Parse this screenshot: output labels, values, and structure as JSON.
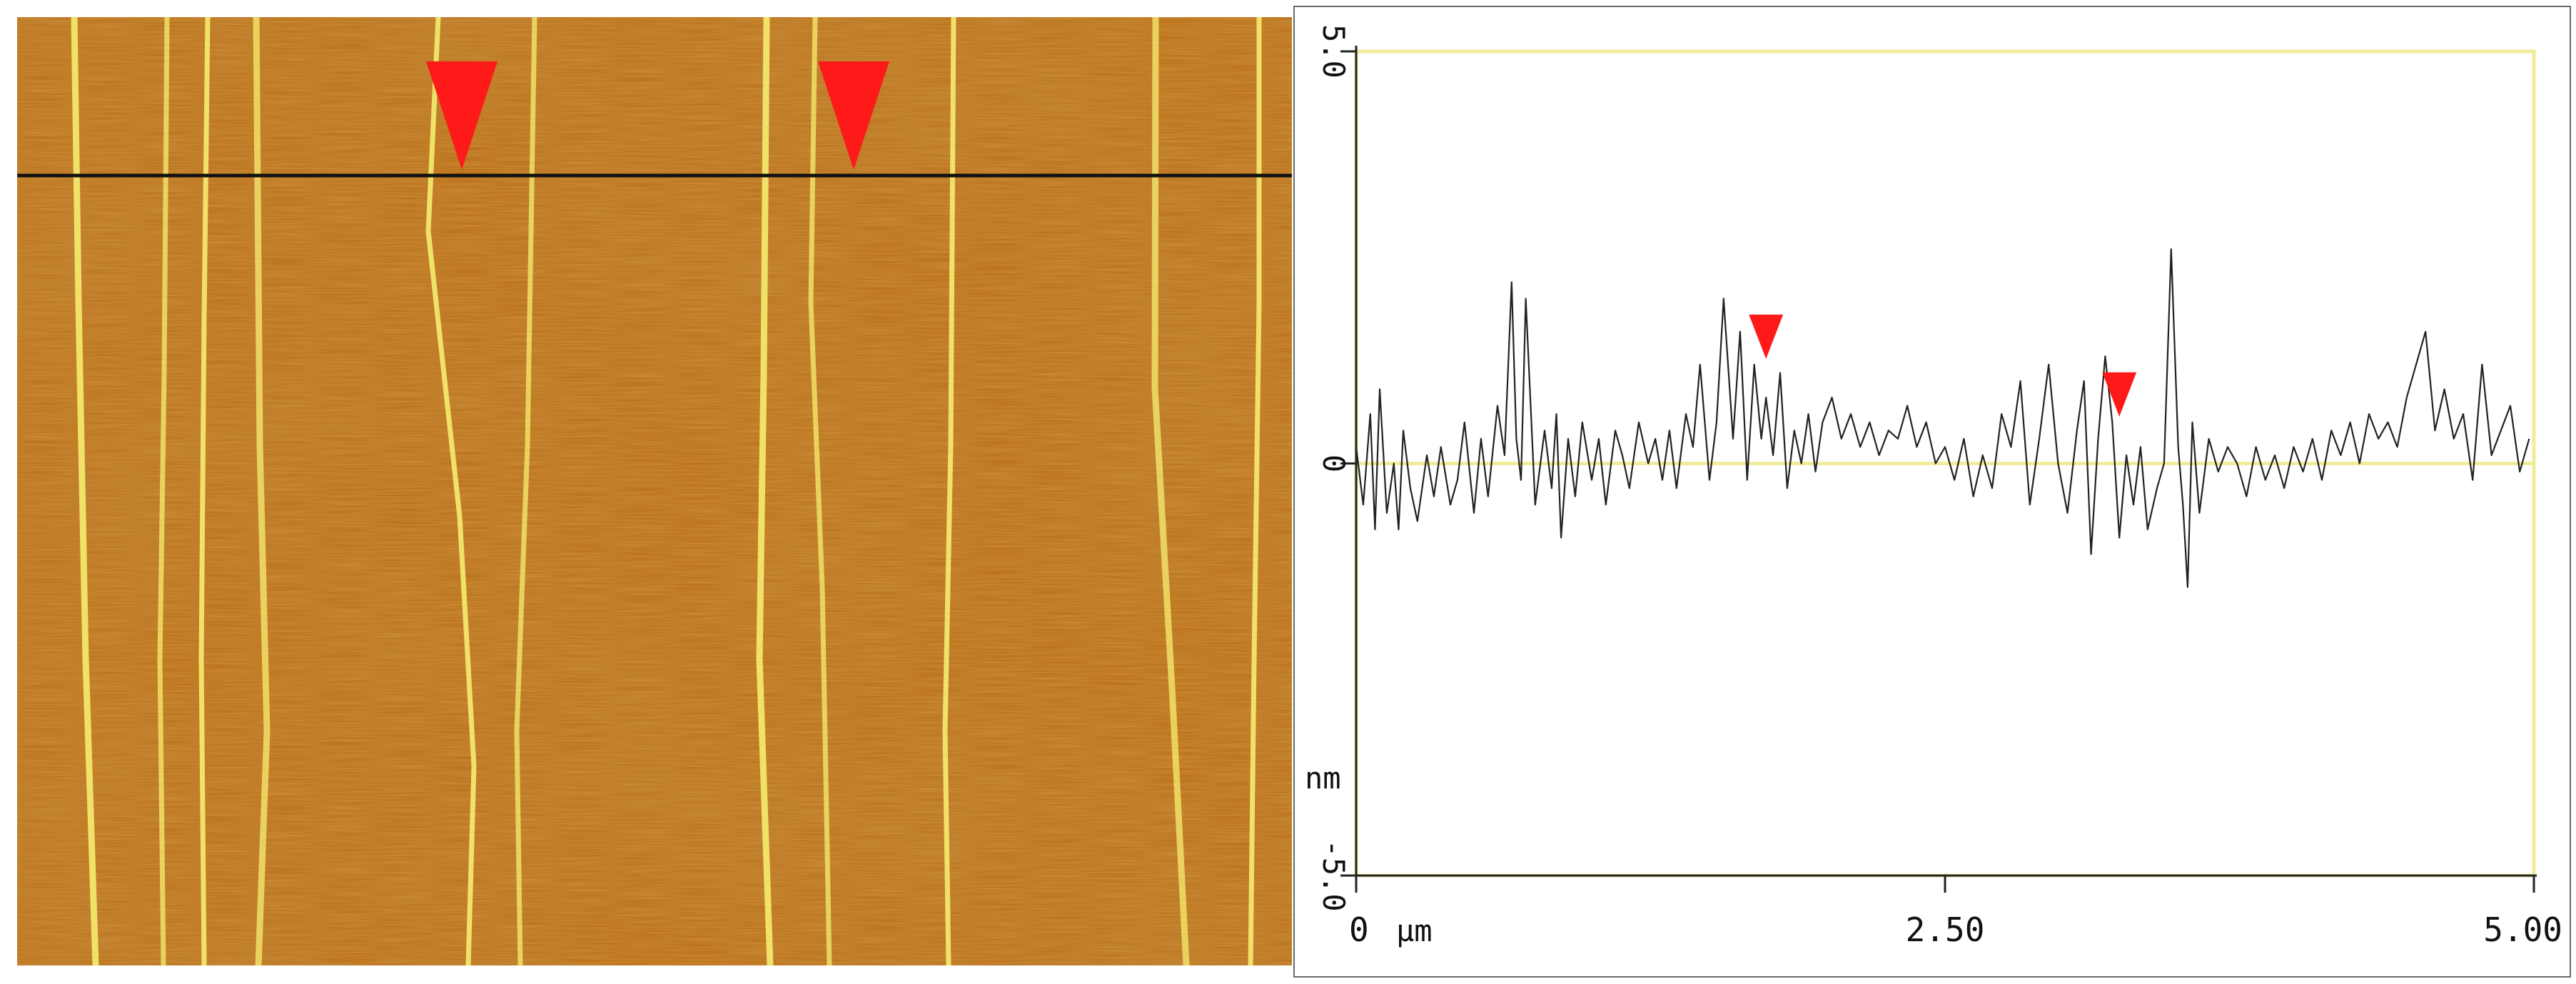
{
  "afm_image": {
    "background_color": "#b4640f",
    "fiber_color": "#f2e76c",
    "scan_line_color": "#111111",
    "marker_color": "#ff1a1a"
  },
  "chart_data": {
    "type": "line",
    "title": "",
    "xlabel": "µm",
    "ylabel": "nm",
    "xlim": [
      0,
      5.0
    ],
    "ylim": [
      -5.0,
      5.0
    ],
    "x_ticks": [
      "0",
      "2.50",
      "5.00"
    ],
    "y_ticks": [
      "5.0",
      "0",
      "-5.0"
    ],
    "grid": false,
    "frame_color": "#f0ec9a",
    "zero_line_color": "#f0ec9a",
    "line_color": "#222222",
    "markers": [
      {
        "x": 1.74,
        "y": 1.2
      },
      {
        "x": 3.24,
        "y": 0.5
      }
    ],
    "series": [
      {
        "x": [
          0.0,
          0.03,
          0.06,
          0.08,
          0.1,
          0.13,
          0.16,
          0.18,
          0.2,
          0.23,
          0.26,
          0.3,
          0.33,
          0.36,
          0.4,
          0.43,
          0.46,
          0.5,
          0.53,
          0.56,
          0.6,
          0.63,
          0.66,
          0.68,
          0.7,
          0.72,
          0.76,
          0.8,
          0.83,
          0.85,
          0.87,
          0.9,
          0.93,
          0.96,
          1.0,
          1.03,
          1.06,
          1.1,
          1.13,
          1.16,
          1.2,
          1.24,
          1.27,
          1.3,
          1.33,
          1.36,
          1.4,
          1.43,
          1.46,
          1.5,
          1.53,
          1.56,
          1.6,
          1.63,
          1.66,
          1.69,
          1.72,
          1.74,
          1.77,
          1.8,
          1.83,
          1.86,
          1.89,
          1.92,
          1.95,
          1.98,
          2.02,
          2.06,
          2.1,
          2.14,
          2.18,
          2.22,
          2.26,
          2.3,
          2.34,
          2.38,
          2.42,
          2.46,
          2.5,
          2.54,
          2.58,
          2.62,
          2.66,
          2.7,
          2.74,
          2.78,
          2.82,
          2.86,
          2.9,
          2.94,
          2.98,
          3.02,
          3.06,
          3.09,
          3.12,
          3.15,
          3.18,
          3.21,
          3.24,
          3.27,
          3.3,
          3.33,
          3.36,
          3.4,
          3.43,
          3.46,
          3.49,
          3.51,
          3.53,
          3.55,
          3.58,
          3.62,
          3.66,
          3.7,
          3.74,
          3.78,
          3.82,
          3.86,
          3.9,
          3.94,
          3.98,
          4.02,
          4.06,
          4.1,
          4.14,
          4.18,
          4.22,
          4.26,
          4.3,
          4.34,
          4.38,
          4.42,
          4.46,
          4.5,
          4.54,
          4.58,
          4.62,
          4.66,
          4.7,
          4.74,
          4.78,
          4.82,
          4.86,
          4.9,
          4.94,
          4.98
        ],
        "y": [
          0.2,
          -0.5,
          0.6,
          -0.8,
          0.9,
          -0.6,
          0.0,
          -0.8,
          0.4,
          -0.3,
          -0.7,
          0.1,
          -0.4,
          0.2,
          -0.5,
          -0.2,
          0.5,
          -0.6,
          0.3,
          -0.4,
          0.7,
          0.1,
          2.2,
          0.3,
          -0.2,
          2.0,
          -0.5,
          0.4,
          -0.3,
          0.6,
          -0.9,
          0.3,
          -0.4,
          0.5,
          -0.2,
          0.3,
          -0.5,
          0.4,
          0.1,
          -0.3,
          0.5,
          0.0,
          0.3,
          -0.2,
          0.4,
          -0.3,
          0.6,
          0.2,
          1.2,
          -0.2,
          0.5,
          2.0,
          0.3,
          1.6,
          -0.2,
          1.2,
          0.3,
          0.8,
          0.1,
          1.1,
          -0.3,
          0.4,
          0.0,
          0.6,
          -0.1,
          0.5,
          0.8,
          0.3,
          0.6,
          0.2,
          0.5,
          0.1,
          0.4,
          0.3,
          0.7,
          0.2,
          0.5,
          0.0,
          0.2,
          -0.2,
          0.3,
          -0.4,
          0.1,
          -0.3,
          0.6,
          0.2,
          1.0,
          -0.5,
          0.3,
          1.2,
          0.0,
          -0.6,
          0.4,
          1.0,
          -1.1,
          0.3,
          1.3,
          0.5,
          -0.9,
          0.1,
          -0.5,
          0.2,
          -0.8,
          -0.3,
          0.0,
          2.6,
          0.2,
          -0.5,
          -1.5,
          0.5,
          -0.6,
          0.3,
          -0.1,
          0.2,
          0.0,
          -0.4,
          0.2,
          -0.2,
          0.1,
          -0.3,
          0.2,
          -0.1,
          0.3,
          -0.2,
          0.4,
          0.1,
          0.5,
          0.0,
          0.6,
          0.3,
          0.5,
          0.2,
          0.8,
          1.2,
          1.6,
          0.4,
          0.9,
          0.3,
          0.6,
          -0.2,
          1.2,
          0.1,
          0.4,
          0.7,
          -0.1,
          0.3
        ]
      }
    ]
  }
}
